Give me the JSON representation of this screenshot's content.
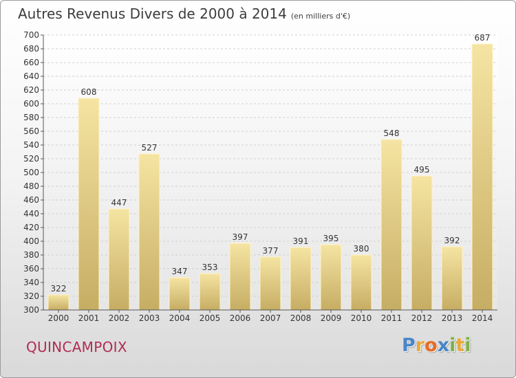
{
  "title": "Autres Revenus Divers de 2000 à 2014",
  "subtitle": "(en milliers d'€)",
  "town": "QUINCAMPOIX",
  "logo": {
    "letters": [
      "P",
      "r",
      "o",
      "x",
      "i",
      "t",
      "i"
    ],
    "colors": [
      "#4a86c8",
      "#e8a93a",
      "#e66b25",
      "#4a86c8",
      "#7cb342",
      "#e8a93a",
      "#7cb342"
    ]
  },
  "colors": {
    "bar_light": "#f5e4a2",
    "bar_dark": "#c6ad64",
    "town": "#b02c54",
    "title": "#3c3c3c"
  },
  "chart_data": {
    "type": "bar",
    "categories": [
      "2000",
      "2001",
      "2002",
      "2003",
      "2004",
      "2005",
      "2006",
      "2007",
      "2008",
      "2009",
      "2010",
      "2011",
      "2012",
      "2013",
      "2014"
    ],
    "values": [
      322,
      608,
      447,
      527,
      347,
      353,
      397,
      377,
      391,
      395,
      380,
      548,
      495,
      392,
      687
    ],
    "data_labels": [
      "322",
      "608",
      "447",
      "527",
      "347",
      "353",
      "397",
      "377",
      "391",
      "395",
      "380",
      "548",
      "495",
      "392",
      "687"
    ],
    "ylim": [
      300,
      700
    ],
    "yticks": [
      "300",
      "320",
      "340",
      "360",
      "380",
      "400",
      "420",
      "440",
      "460",
      "480",
      "500",
      "520",
      "540",
      "560",
      "580",
      "600",
      "620",
      "640",
      "660",
      "680",
      "700"
    ],
    "grid": "horizontal",
    "xlabel": "",
    "ylabel": ""
  }
}
